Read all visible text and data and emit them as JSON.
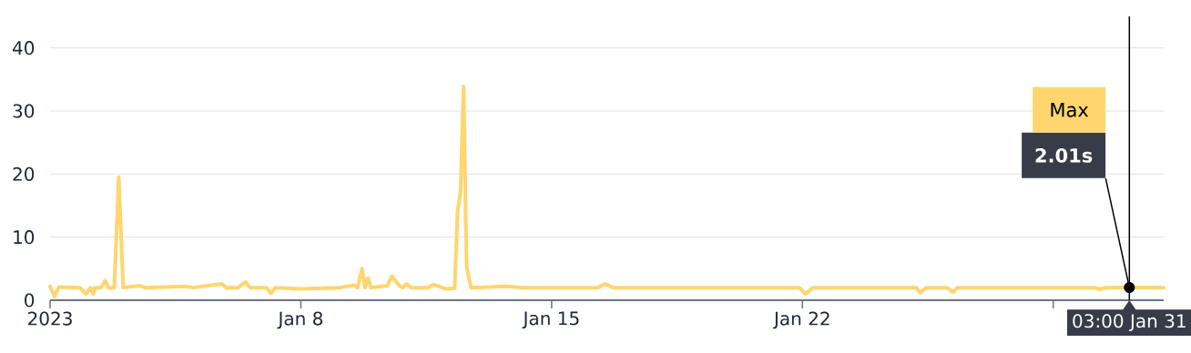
{
  "chart_data": {
    "type": "line",
    "color": "#ffd56e",
    "grid": "y",
    "marker": "none",
    "line_style": "solid",
    "xlim": [
      "2023-01-01",
      "2023-02-01T02:00"
    ],
    "ylim": [
      0,
      45
    ],
    "xticks": [
      {
        "value": "2023-01-01",
        "label": "2023"
      },
      {
        "value": "2023-01-08",
        "label": "Jan 8"
      },
      {
        "value": "2023-01-15",
        "label": "Jan 15"
      },
      {
        "value": "2023-01-22",
        "label": "Jan 22"
      },
      {
        "value": "2023-01-29",
        "label": null
      }
    ],
    "yticks": [
      0,
      10,
      20,
      30,
      40
    ],
    "x": [
      "2023-01-01T00:00",
      "2023-01-01T03:00",
      "2023-01-01T06:00",
      "2023-01-01T20:00",
      "2023-01-02T00:00",
      "2023-01-02T03:00",
      "2023-01-02T05:00",
      "2023-01-02T06:00",
      "2023-01-02T10:00",
      "2023-01-02T13:00",
      "2023-01-02T15:00",
      "2023-01-02T19:00",
      "2023-01-02T22:00",
      "2023-01-03T01:00",
      "2023-01-03T12:00",
      "2023-01-03T16:00",
      "2023-01-04T18:00",
      "2023-01-05T00:00",
      "2023-01-05T19:00",
      "2023-01-05T22:00",
      "2023-01-06T06:00",
      "2023-01-06T11:00",
      "2023-01-06T14:00",
      "2023-01-07T01:00",
      "2023-01-07T04:00",
      "2023-01-07T07:00",
      "2023-01-08T00:00",
      "2023-01-09T02:00",
      "2023-01-09T12:00",
      "2023-01-09T14:00",
      "2023-01-09T17:00",
      "2023-01-09T19:00",
      "2023-01-09T21:00",
      "2023-01-09T23:00",
      "2023-01-10T10:00",
      "2023-01-10T13:00",
      "2023-01-10T18:00",
      "2023-01-10T20:00",
      "2023-01-10T23:00",
      "2023-01-11T02:00",
      "2023-01-11T13:00",
      "2023-01-11T17:00",
      "2023-01-12T01:00",
      "2023-01-12T07:00",
      "2023-01-12T09:00",
      "2023-01-12T11:00",
      "2023-01-12T13:00",
      "2023-01-12T15:00",
      "2023-01-12T18:00",
      "2023-01-13T18:00",
      "2023-01-14T05:00",
      "2023-01-16T07:00",
      "2023-01-16T12:00",
      "2023-01-16T17:00",
      "2023-01-21T22:00",
      "2023-01-22T02:00",
      "2023-01-22T07:00",
      "2023-01-25T04:00",
      "2023-01-25T07:00",
      "2023-01-25T11:00",
      "2023-01-26T01:00",
      "2023-01-26T05:00",
      "2023-01-26T08:00",
      "2023-01-30T04:00",
      "2023-01-30T07:00",
      "2023-01-30T11:00",
      "2023-01-31T03:00",
      "2023-02-01T02:00"
    ],
    "values": [
      2.2,
      0.6,
      2.1,
      2.0,
      1.0,
      2.0,
      1.0,
      2.0,
      2.0,
      3.1,
      2.0,
      2.0,
      19.5,
      2.0,
      2.3,
      2.0,
      2.2,
      2.0,
      2.6,
      2.0,
      2.0,
      2.9,
      2.0,
      2.0,
      1.1,
      2.0,
      1.8,
      2.0,
      2.4,
      2.0,
      5.0,
      2.0,
      3.5,
      2.0,
      2.3,
      3.8,
      2.3,
      2.0,
      2.6,
      2.0,
      2.0,
      2.5,
      1.8,
      1.9,
      14.2,
      17.1,
      33.9,
      5.3,
      2.0,
      2.2,
      2.0,
      2.0,
      2.6,
      2.0,
      2.0,
      1.0,
      2.0,
      2.0,
      1.2,
      2.0,
      2.0,
      1.3,
      2.0,
      2.0,
      1.7,
      2.0,
      2.01,
      2.0
    ],
    "ref_lines": [
      {
        "axis": "x",
        "value": "2023-01-31T03:00",
        "label": "03:00 Jan 31",
        "color": "#000000"
      }
    ],
    "annotations": [
      "Max",
      {
        "text": "2.01s",
        "x": "2023-01-31T03:00",
        "y": 2.01
      }
    ]
  }
}
